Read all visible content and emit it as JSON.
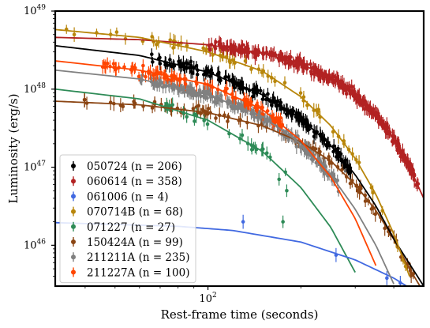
{
  "chart_data": {
    "type": "scatter",
    "title": "",
    "xlabel": "Rest-frame time (seconds)",
    "ylabel": "Luminosity (erg/s)",
    "x_scale": "log",
    "y_scale": "log",
    "xlim": [
      32,
      500
    ],
    "ylim": [
      3e+45,
      1e+49
    ],
    "x_ticks": [
      {
        "value": 100,
        "label": "10",
        "sup": "2"
      }
    ],
    "y_ticks": [
      {
        "value": 1e+46,
        "label": "10",
        "sup": "46"
      },
      {
        "value": 1e+47,
        "label": "10",
        "sup": "47"
      },
      {
        "value": 1e+48,
        "label": "10",
        "sup": "48"
      },
      {
        "value": 1e+49,
        "label": "10",
        "sup": "49"
      }
    ],
    "grid": false,
    "legend_position": "lower-left",
    "series": [
      {
        "name": "050724 (n = 206)",
        "color": "#000000",
        "t_start": 65,
        "t_end": 290,
        "curve": [
          [
            32,
            3.6e+48
          ],
          [
            60,
            2.7e+48
          ],
          [
            100,
            1.65e+48
          ],
          [
            150,
            8.5e+47
          ],
          [
            200,
            4.2e+47
          ],
          [
            250,
            1.9e+47
          ],
          [
            300,
            8e+46
          ],
          [
            350,
            3.2e+46
          ],
          [
            400,
            1.2e+46
          ],
          [
            500,
            3e+45
          ]
        ]
      },
      {
        "name": "060614 (n = 358)",
        "color": "#b22222",
        "t_start": 100,
        "t_end": 480,
        "curve": [
          [
            32,
            4.6e+48
          ],
          [
            60,
            4.3e+48
          ],
          [
            100,
            3.7e+48
          ],
          [
            150,
            2.9e+48
          ],
          [
            200,
            2.1e+48
          ],
          [
            250,
            1.4e+48
          ],
          [
            300,
            8.5e+47
          ],
          [
            350,
            4.7e+47
          ],
          [
            400,
            2.3e+47
          ],
          [
            450,
            1e+47
          ],
          [
            500,
            4e+46
          ]
        ]
      },
      {
        "name": "061006 (n = 4)",
        "color": "#4169e1",
        "t_start": 105,
        "t_end": 420,
        "points": [
          [
            130,
            2e+46
          ],
          [
            260,
            7.5e+45
          ],
          [
            380,
            3.8e+45
          ],
          [
            420,
            3.3e+45
          ]
        ],
        "curve": [
          [
            32,
            1.95e+46
          ],
          [
            80,
            1.75e+46
          ],
          [
            120,
            1.55e+46
          ],
          [
            200,
            1.1e+46
          ],
          [
            300,
            6.5e+45
          ],
          [
            400,
            3.8e+45
          ],
          [
            500,
            2.2e+45
          ]
        ]
      },
      {
        "name": "070714B (n = 68)",
        "color": "#b8860b",
        "t_start": 34,
        "t_end": 480,
        "curve": [
          [
            32,
            5.8e+48
          ],
          [
            60,
            4.6e+48
          ],
          [
            100,
            3e+48
          ],
          [
            150,
            1.7e+48
          ],
          [
            200,
            8e+47
          ],
          [
            250,
            3.4e+47
          ],
          [
            300,
            1.3e+47
          ],
          [
            350,
            4.5e+46
          ],
          [
            400,
            1.4e+46
          ],
          [
            450,
            4e+45
          ]
        ]
      },
      {
        "name": "071227 (n = 27)",
        "color": "#2e8b57",
        "t_start": 60,
        "t_end": 180,
        "points": [
          [
            170,
            7e+46
          ],
          [
            180,
            5e+46
          ],
          [
            175,
            2e+46
          ]
        ],
        "curve": [
          [
            32,
            1e+48
          ],
          [
            60,
            7.5e+47
          ],
          [
            100,
            4e+47
          ],
          [
            150,
            1.6e+47
          ],
          [
            200,
            5.5e+46
          ],
          [
            250,
            1.7e+46
          ],
          [
            300,
            4.5e+45
          ]
        ]
      },
      {
        "name": "150424A (n = 99)",
        "color": "#8b4513",
        "t_start": 38,
        "t_end": 480,
        "curve": [
          [
            32,
            7e+47
          ],
          [
            60,
            6.3e+47
          ],
          [
            100,
            5e+47
          ],
          [
            150,
            3.4e+47
          ],
          [
            200,
            2.1e+47
          ],
          [
            250,
            1.2e+47
          ],
          [
            300,
            6e+46
          ],
          [
            350,
            2.8e+46
          ],
          [
            400,
            1.2e+46
          ],
          [
            450,
            5e+45
          ],
          [
            500,
            2.5e+45
          ]
        ]
      },
      {
        "name": "211211A (n = 235)",
        "color": "#808080",
        "t_start": 60,
        "t_end": 265,
        "curve": [
          [
            32,
            1.75e+48
          ],
          [
            60,
            1.35e+48
          ],
          [
            100,
            8.5e+47
          ],
          [
            150,
            4.5e+47
          ],
          [
            200,
            2e+47
          ],
          [
            250,
            8e+46
          ],
          [
            300,
            2.9e+46
          ],
          [
            350,
            1e+46
          ],
          [
            400,
            3.2e+45
          ]
        ]
      },
      {
        "name": "211227A (n = 100)",
        "color": "#ff4500",
        "t_start": 45,
        "t_end": 175,
        "curve": [
          [
            32,
            2.3e+48
          ],
          [
            60,
            1.75e+48
          ],
          [
            100,
            1.15e+48
          ],
          [
            150,
            5.5e+47
          ],
          [
            200,
            2.2e+47
          ],
          [
            250,
            7.5e+46
          ],
          [
            300,
            2.2e+46
          ],
          [
            350,
            5.5e+45
          ]
        ]
      }
    ]
  }
}
